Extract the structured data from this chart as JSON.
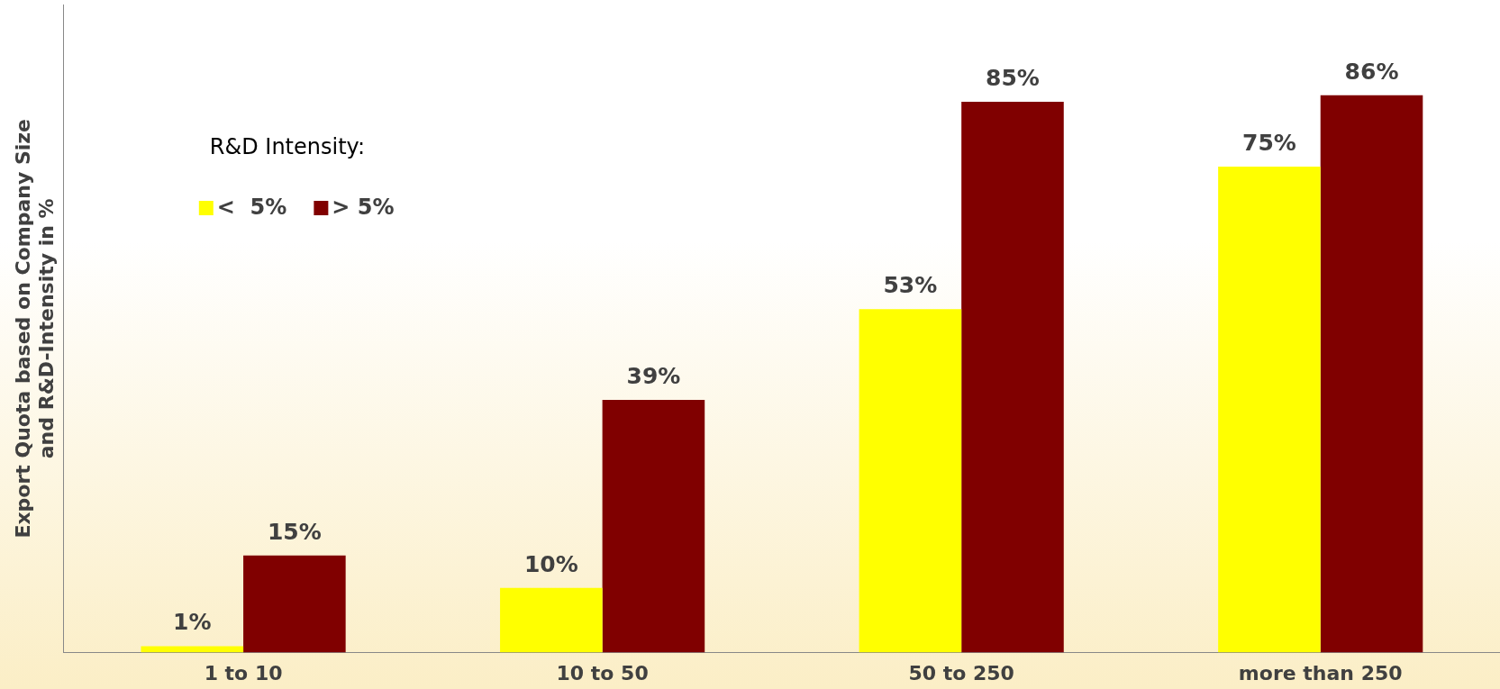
{
  "chart_data": {
    "type": "bar",
    "ylabel": "Export Quota based on Company Size and R&D-Intensity in %",
    "legend_title": "R&D Intensity:",
    "legend": "top left",
    "tick_labels": "x",
    "grid": false,
    "categories": [
      "1 to 10",
      "10 to 50",
      "50 to 250",
      "more than 250"
    ],
    "series": [
      {
        "name": "<  5%",
        "color": "#ffff00",
        "values": [
          1,
          10,
          53,
          75
        ],
        "value_labels": [
          "1%",
          "10%",
          "53%",
          "75%"
        ]
      },
      {
        "name": "> 5%",
        "color": "#800000",
        "values": [
          15,
          39,
          85,
          86
        ],
        "value_labels": [
          "15%",
          "39%",
          "85%",
          "86%"
        ]
      }
    ]
  }
}
